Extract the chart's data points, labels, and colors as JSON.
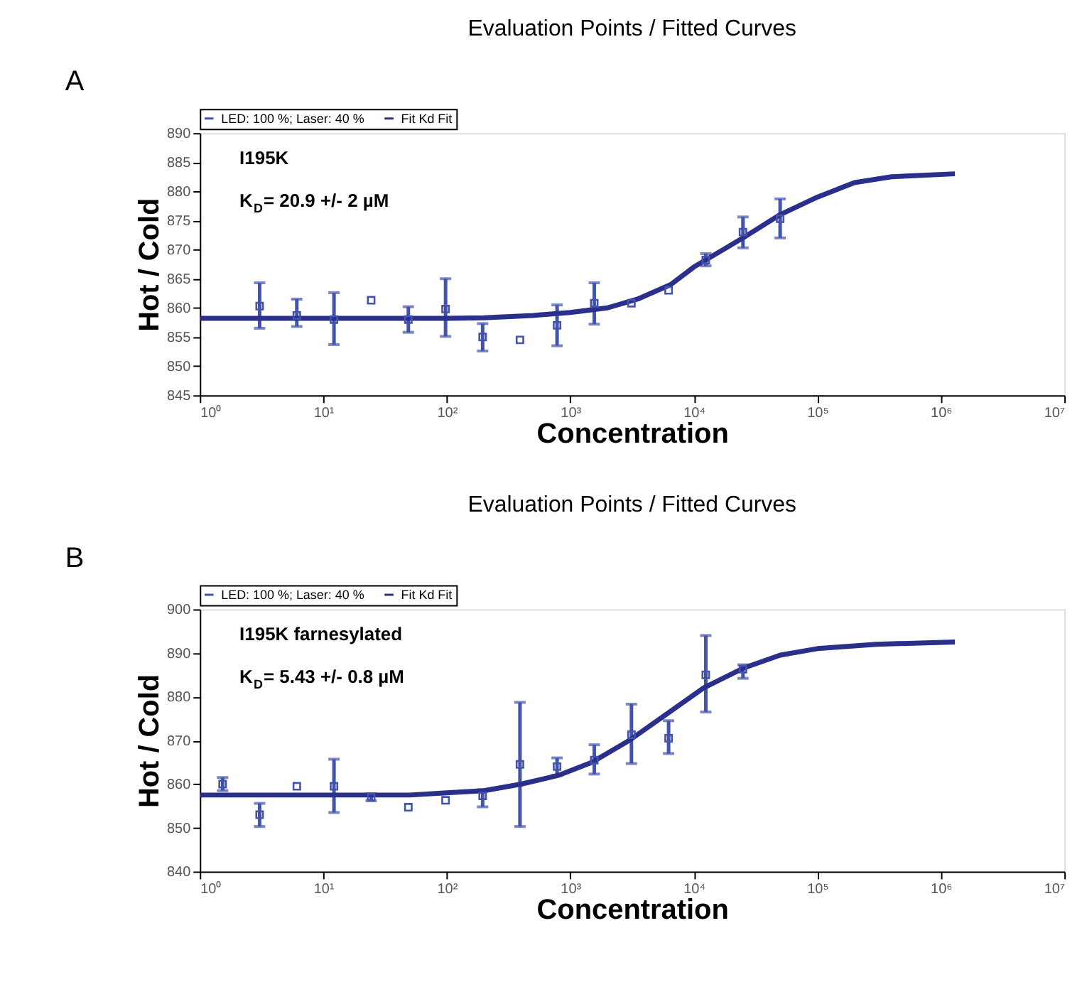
{
  "chart_data": [
    {
      "type": "scatter",
      "title": "Evaluation Points / Fitted Curves",
      "xlabel": "Concentration",
      "ylabel": "Hot / Cold",
      "annotations": [
        "A",
        "I195K",
        "K$_{D}$= 20.9 +/- 2 µM"
      ],
      "log": "x",
      "grid": false,
      "legend": "top",
      "marker": "square",
      "xlim": [
        1,
        10000000
      ],
      "xticks": [
        {
          "value": 1,
          "label": "10⁰"
        },
        {
          "value": 10,
          "label": "10¹"
        },
        {
          "value": 100,
          "label": "10²"
        },
        {
          "value": 1000,
          "label": "10³"
        },
        {
          "value": 10000,
          "label": "10⁴"
        },
        {
          "value": 100000,
          "label": "10⁵"
        },
        {
          "value": 1000000,
          "label": "10⁶"
        },
        {
          "value": 10000000,
          "label": "10⁷"
        }
      ],
      "ylim": [
        845,
        890
      ],
      "yticks": [
        845,
        850,
        855,
        860,
        865,
        870,
        875,
        880,
        885,
        890
      ],
      "series": [
        {
          "name": "LED: 100 %; Laser: 40 %",
          "color": "#4352ad",
          "x": [
            3.05,
            6.1,
            12.2,
            24.4,
            48.8,
            97.7,
            195,
            391,
            781,
            1563,
            3125,
            6250,
            12500,
            25000,
            50000
          ],
          "values": [
            860.3,
            858.7,
            858,
            861.3,
            858,
            859.8,
            855,
            854.5,
            857,
            860.8,
            860.8,
            863,
            868.2,
            873,
            875.3
          ],
          "errors": [
            [
              856.5,
              864.3
            ],
            [
              856.8,
              861.5
            ],
            [
              853.7,
              862.6
            ],
            null,
            [
              855.8,
              860.2
            ],
            [
              855.1,
              865
            ],
            [
              852.6,
              857.3
            ],
            null,
            [
              853.5,
              860.5
            ],
            [
              857.2,
              864.3
            ],
            null,
            null,
            [
              867.2,
              869.3
            ],
            [
              870.3,
              875.6
            ],
            [
              872,
              878.7
            ]
          ]
        },
        {
          "name": "Fit Kd Fit",
          "type": "line",
          "marker": "none",
          "color": "#2b2f8c",
          "x": [
            1,
            10,
            100,
            200,
            500,
            1000,
            2000,
            3500,
            6500,
            10000,
            25000,
            50000,
            100000,
            200000,
            400000,
            1300000
          ],
          "values": [
            858.2,
            858.2,
            858.2,
            858.3,
            858.7,
            859.2,
            860,
            861.5,
            864,
            867,
            872,
            876,
            879,
            881.5,
            882.5,
            883
          ]
        }
      ]
    },
    {
      "type": "scatter",
      "title": "Evaluation Points / Fitted Curves",
      "xlabel": "Concentration",
      "ylabel": "Hot / Cold",
      "annotations": [
        "B",
        "I195K farnesylated",
        "K$_{D}$= 5.43 +/- 0.8 µM"
      ],
      "log": "x",
      "grid": false,
      "legend": "top",
      "marker": "square",
      "xlim": [
        1,
        10000000
      ],
      "xticks": [
        {
          "value": 1,
          "label": "10⁰"
        },
        {
          "value": 10,
          "label": "10¹"
        },
        {
          "value": 100,
          "label": "10²"
        },
        {
          "value": 1000,
          "label": "10³"
        },
        {
          "value": 10000,
          "label": "10⁴"
        },
        {
          "value": 100000,
          "label": "10⁵"
        },
        {
          "value": 1000000,
          "label": "10⁶"
        },
        {
          "value": 10000000,
          "label": "10⁷"
        }
      ],
      "ylim": [
        840,
        900
      ],
      "yticks": [
        840,
        850,
        860,
        870,
        880,
        890,
        900
      ],
      "series": [
        {
          "name": "LED: 100 %; Laser: 40 %",
          "color": "#4352ad",
          "x": [
            1.53,
            3.05,
            6.1,
            12.2,
            24.4,
            48.8,
            97.7,
            195,
            391,
            781,
            1563,
            3125,
            6250,
            12500,
            25000
          ],
          "values": [
            860,
            853,
            859.5,
            859.5,
            857,
            854.7,
            856.3,
            857.3,
            864.5,
            864,
            865.5,
            871.3,
            870.5,
            885,
            886.3
          ],
          "errors": [
            [
              858.5,
              861.5
            ],
            [
              850.3,
              855.6
            ],
            null,
            [
              853.5,
              865.7
            ],
            [
              856.2,
              857.8
            ],
            null,
            null,
            [
              854.8,
              858.7
            ],
            [
              850.3,
              878.7
            ],
            [
              862,
              866
            ],
            [
              862.3,
              869
            ],
            [
              864.7,
              878.3
            ],
            [
              867,
              874.5
            ],
            [
              876.5,
              894
            ],
            [
              884.2,
              887.3
            ]
          ]
        },
        {
          "name": "Fit Kd Fit",
          "type": "line",
          "marker": "none",
          "color": "#2b2f8c",
          "x": [
            1,
            10,
            50,
            100,
            200,
            400,
            800,
            1500,
            3000,
            6000,
            12000,
            25000,
            50000,
            100000,
            300000,
            1300000
          ],
          "values": [
            857.5,
            857.5,
            857.5,
            858,
            858.5,
            860,
            862,
            865,
            870,
            876,
            882,
            886.5,
            889.5,
            891,
            892,
            892.5
          ]
        }
      ]
    }
  ]
}
